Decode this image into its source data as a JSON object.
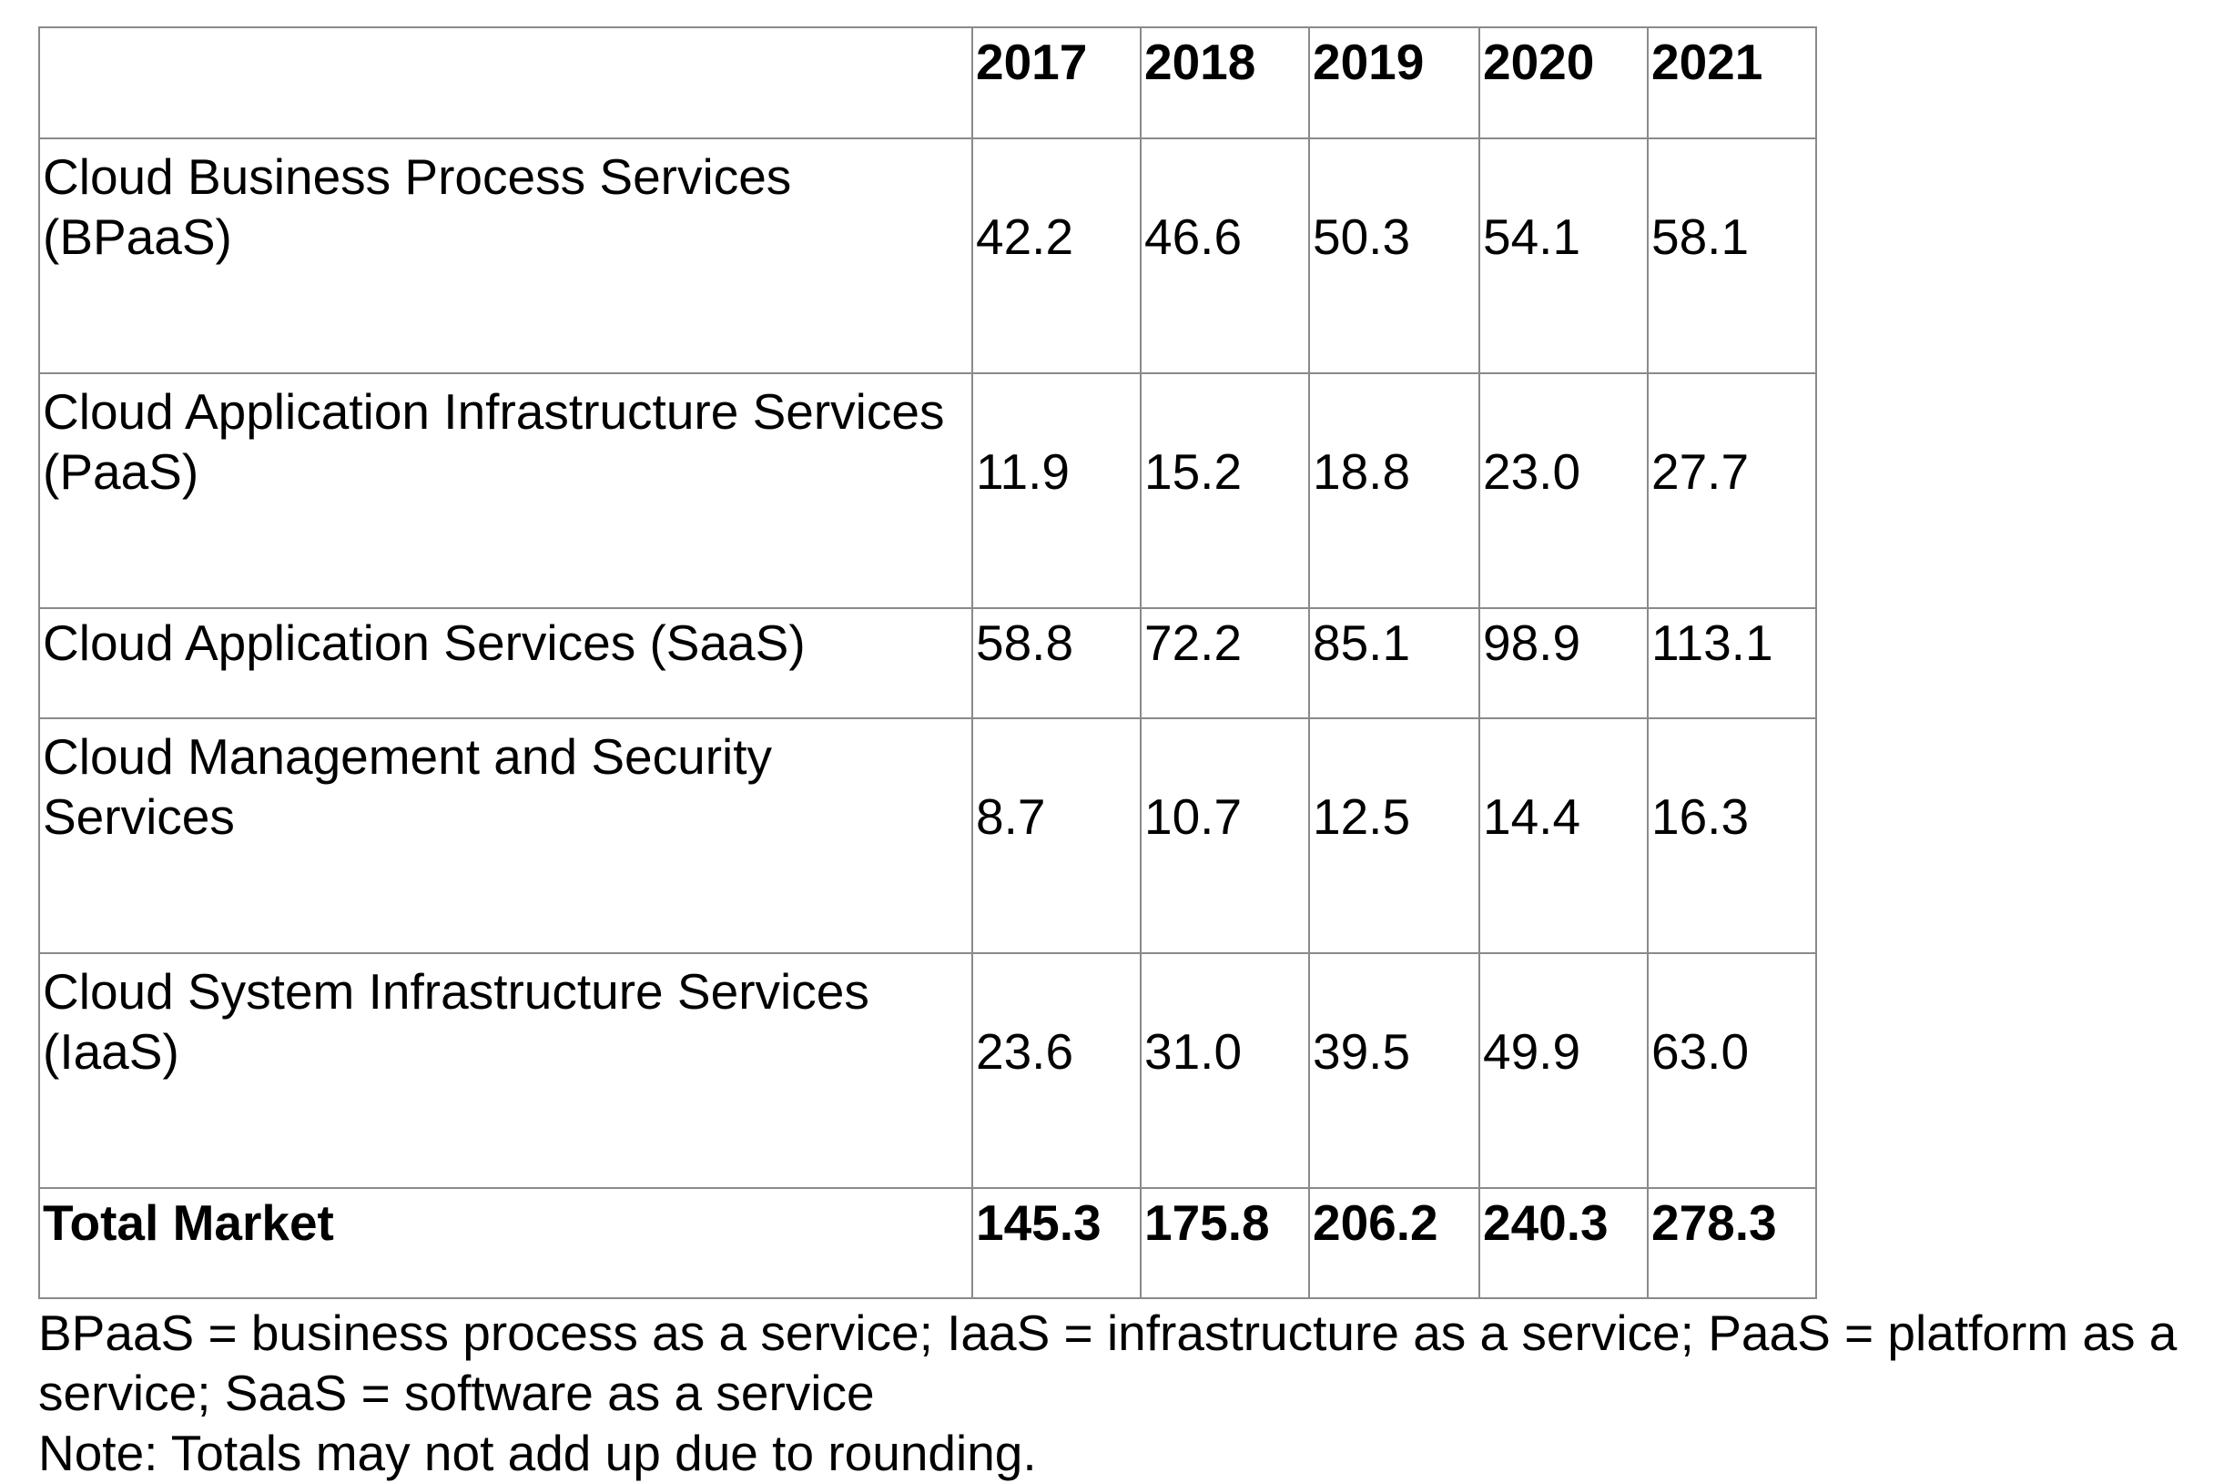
{
  "table": {
    "header": {
      "corner": "",
      "years": [
        "2017",
        "2018",
        "2019",
        "2020",
        "2021"
      ]
    },
    "rows": [
      {
        "label": "Cloud Business Process Services (BPaaS)",
        "values": [
          "42.2",
          "46.6",
          "50.3",
          "54.1",
          "58.1"
        ]
      },
      {
        "label": "Cloud Application Infrastructure Services (PaaS)",
        "values": [
          "11.9",
          "15.2",
          "18.8",
          "23.0",
          "27.7"
        ]
      },
      {
        "label": "Cloud Application Services (SaaS)",
        "values": [
          "58.8",
          "72.2",
          "85.1",
          "98.9",
          "113.1"
        ]
      },
      {
        "label": "Cloud Management and Security Services",
        "values": [
          "8.7",
          "10.7",
          "12.5",
          "14.4",
          "16.3"
        ]
      },
      {
        "label": "Cloud System Infrastructure Services (IaaS)",
        "values": [
          "23.6",
          "31.0",
          "39.5",
          "49.9",
          "63.0"
        ]
      }
    ],
    "total": {
      "label": "Total Market",
      "values": [
        "145.3",
        "175.8",
        "206.2",
        "240.3",
        "278.3"
      ]
    }
  },
  "notes": {
    "abbreviations": "BPaaS = business process as a service; IaaS = infrastructure as a service; PaaS = platform as a service; SaaS = software as a service",
    "rounding": "Note: Totals may not add up due to rounding."
  }
}
